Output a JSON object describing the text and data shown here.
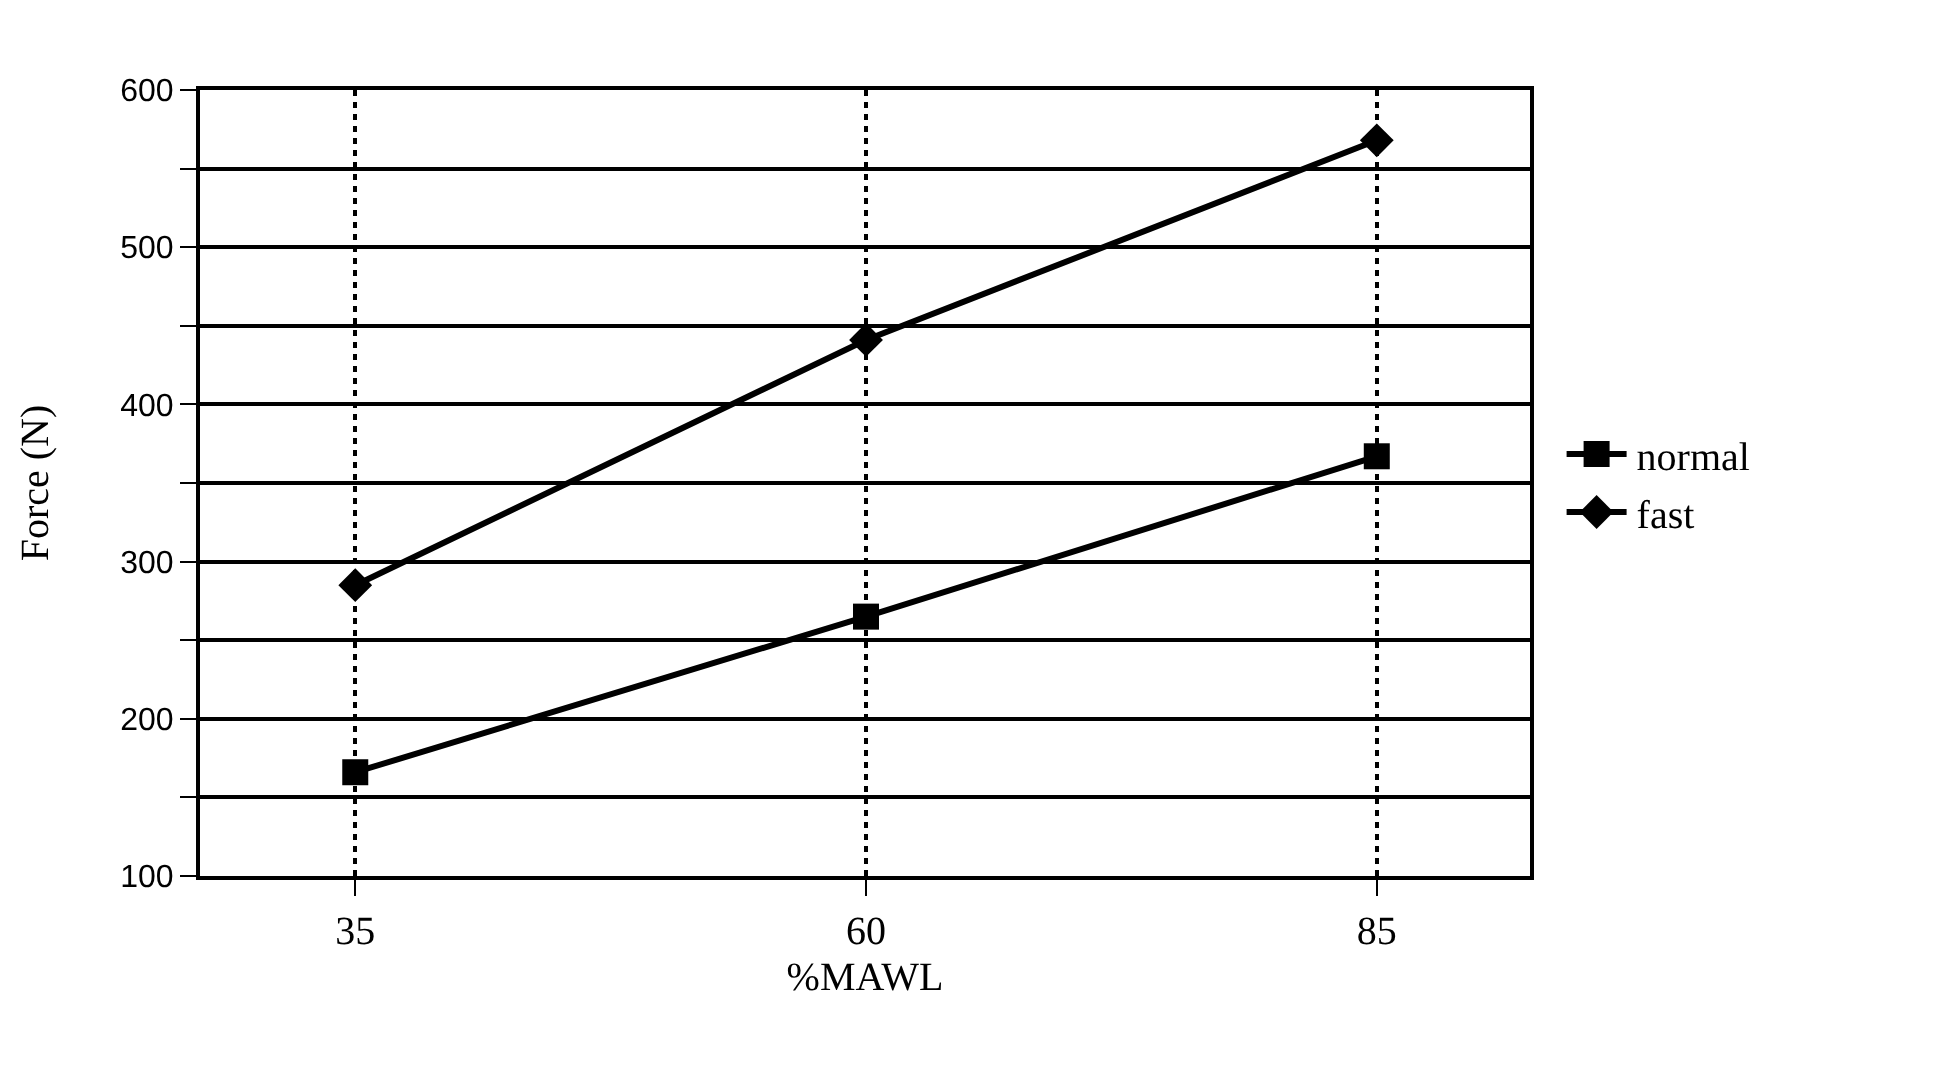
{
  "chart_data": {
    "type": "line",
    "xlabel": "%MAWL",
    "ylabel": "Force (N)",
    "x": [
      35,
      60,
      85
    ],
    "series": [
      {
        "name": "normal",
        "color": "#000000",
        "marker": "square",
        "values": [
          166,
          265,
          367
        ]
      },
      {
        "name": "fast",
        "color": "#000000",
        "marker": "diamond",
        "values": [
          285,
          441,
          568
        ]
      }
    ],
    "xlim": [
      27.4,
      92.5
    ],
    "xticks": [
      35,
      60,
      85
    ],
    "ylim": [
      100,
      600
    ],
    "yticks": [
      100,
      {
        "value": 150,
        "label": null
      },
      200,
      {
        "value": 250,
        "label": null
      },
      300,
      {
        "value": 350,
        "label": null
      },
      400,
      {
        "value": 450,
        "label": null
      },
      500,
      {
        "value": 550,
        "label": null
      },
      600
    ],
    "grid": true,
    "legend": "right",
    "line_style": "solid"
  }
}
